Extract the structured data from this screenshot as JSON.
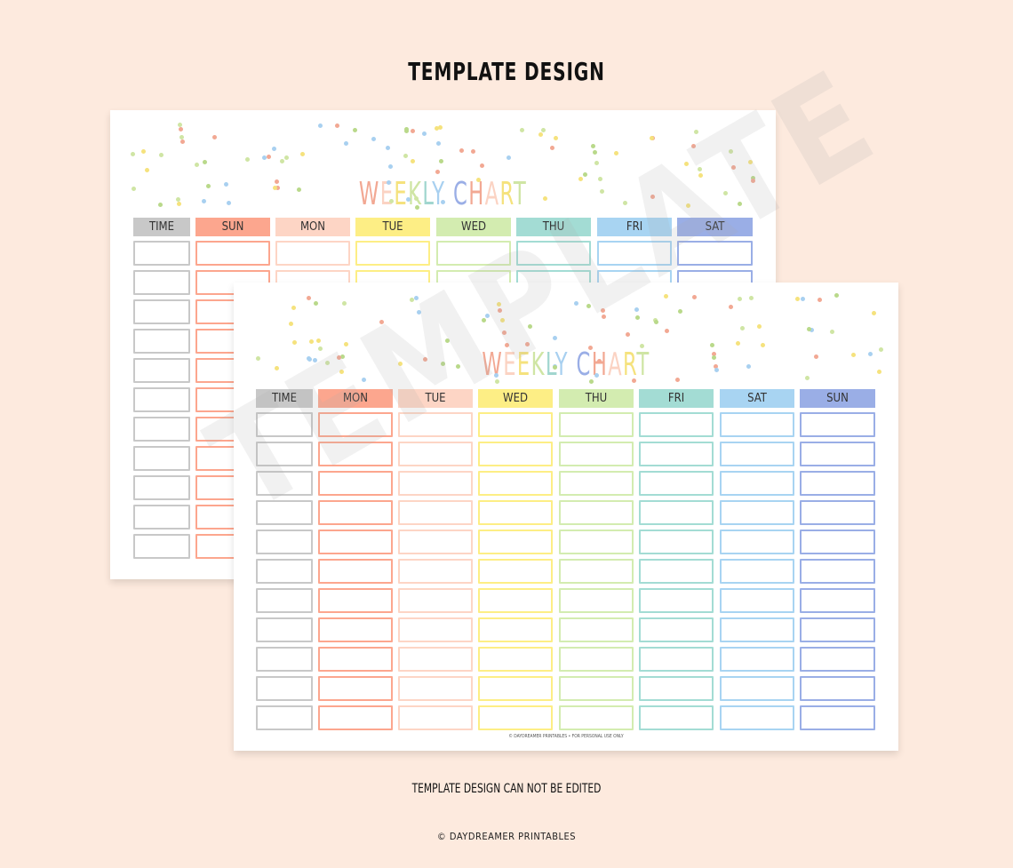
{
  "heading": "TEMPLATE DESIGN",
  "title": "WEEKLY CHART",
  "title_colors": [
    "#f2a893",
    "#fbd3c3",
    "#f5e27d",
    "#cfe5a4",
    "#a1d6cf",
    "#a8d0f0",
    "#f2a893",
    "#9aaee6",
    "#f2a893",
    "#fbd3c3",
    "#f5e27d",
    "#cfe5a4"
  ],
  "back_sheet": {
    "columns": [
      "TIME",
      "SUN",
      "MON",
      "TUE",
      "WED",
      "THU",
      "FRI",
      "SAT"
    ],
    "rows": 11
  },
  "front_sheet": {
    "columns": [
      "TIME",
      "MON",
      "TUE",
      "WED",
      "THU",
      "FRI",
      "SAT",
      "SUN"
    ],
    "rows": 11,
    "footer": "© DAYDREAMER PRINTABLES • FOR PERSONAL USE ONLY"
  },
  "watermark": "TEMPLATE",
  "note": "TEMPLATE DESIGN CAN NOT BE EDITED",
  "copyright": "© DAYDREAMER PRINTABLES",
  "colors": {
    "background": "#fdeade",
    "time": "#c8c8c8",
    "col1": "#fca68e",
    "col2": "#fdd5c5",
    "col3": "#fdee85",
    "col4": "#d3ecb0",
    "col5": "#a3dcd4",
    "col6": "#a8d4f2",
    "col7": "#9aaee6"
  },
  "dot_colors": [
    "#f2a893",
    "#f5e27d",
    "#cfe5a4",
    "#a8d0f0",
    "#b9d98a"
  ]
}
